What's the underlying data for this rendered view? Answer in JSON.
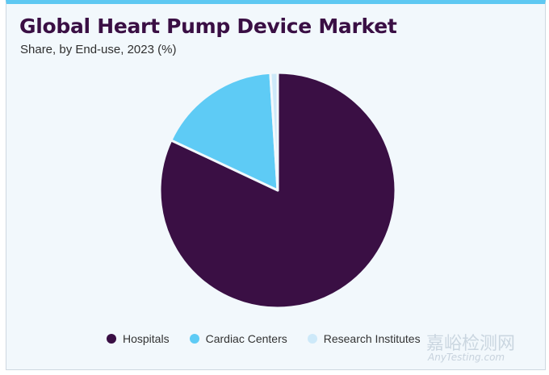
{
  "chart_data": {
    "type": "pie",
    "title": "Global Heart Pump Device Market",
    "subtitle": "Share, by End-use, 2023 (%)",
    "categories": [
      "Hospitals",
      "Cardiac Centers",
      "Research Institutes"
    ],
    "values": [
      82,
      17,
      1
    ],
    "unit": "%",
    "colors": [
      "#3a0f44",
      "#5ecbf5",
      "#cde9f9"
    ],
    "legend_position": "bottom"
  },
  "watermark": {
    "cn": "嘉峪检测网",
    "en": "AnyTesting.com"
  }
}
